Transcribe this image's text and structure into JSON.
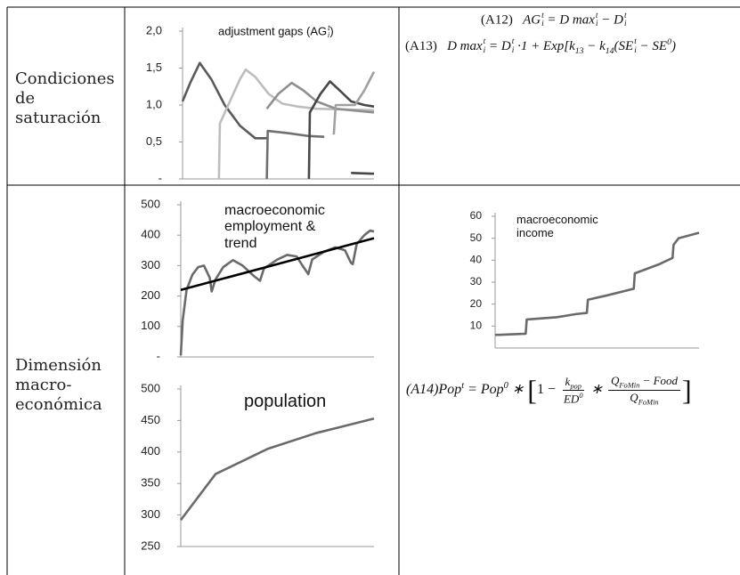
{
  "table": {
    "rows": [
      {
        "label": [
          "Condiciones",
          "de",
          "saturación"
        ]
      },
      {
        "label": [
          "Dimensión",
          "macro-",
          "económica"
        ]
      }
    ]
  },
  "equations": {
    "a12": [
      "(A12)",
      "AG",
      "t",
      "i",
      " = D max",
      "t",
      "i",
      " − D",
      "t",
      "i"
    ],
    "a13": [
      "(A13)",
      "D max",
      "t",
      "i",
      " = D",
      "t",
      "i",
      " ·1 + Exp[k",
      "13",
      " − k",
      "14",
      "(SE",
      "t",
      "i",
      " − SE",
      "0",
      ")"
    ],
    "a14": [
      "(A14)Pop",
      "t",
      " = Pop",
      "0",
      " ∗ ",
      "[",
      "1 − ",
      "k",
      "pop",
      "ED",
      "0",
      " ∗ ",
      "Q",
      "FoMin",
      " − Food",
      "Q",
      "FoMin",
      "]"
    ]
  },
  "chart_data": [
    {
      "type": "line",
      "title": [
        "adjustment gaps (AG",
        "t",
        "i",
        ")"
      ],
      "xlim": [
        0,
        100
      ],
      "ylim": [
        0,
        2
      ],
      "yticks": [
        {
          "value": 2,
          "label": "2,0"
        },
        {
          "value": 1.5,
          "label": "1,5"
        },
        {
          "value": 1,
          "label": "1,0"
        },
        {
          "value": 0.5,
          "label": "0,5"
        },
        {
          "value": 0,
          "label": "-"
        }
      ],
      "series": [
        {
          "color": "#5a5a5a",
          "x": [
            0,
            4,
            9,
            15,
            22,
            30,
            38,
            44
          ],
          "values": [
            1.05,
            1.3,
            1.57,
            1.35,
            1.0,
            0.72,
            0.55,
            0.55
          ]
        },
        {
          "color": "#bdbdbd",
          "x": [
            19,
            19.5,
            23,
            30,
            33,
            38,
            45,
            52,
            60,
            70,
            100
          ],
          "values": [
            0,
            0.75,
            0.95,
            1.35,
            1.48,
            1.38,
            1.15,
            1.02,
            0.98,
            0.95,
            0.93
          ]
        },
        {
          "color": "#707070",
          "x": [
            44,
            44.5,
            55,
            66,
            74
          ],
          "values": [
            0,
            0.65,
            0.62,
            0.58,
            0.57
          ]
        },
        {
          "color": "#8f8f8f",
          "x": [
            44,
            50,
            57,
            63,
            70,
            80,
            100
          ],
          "values": [
            0.95,
            1.15,
            1.3,
            1.2,
            1.05,
            0.95,
            0.9
          ]
        },
        {
          "color": "#474747",
          "x": [
            66,
            66.5,
            72,
            77,
            82,
            88,
            95,
            100
          ],
          "values": [
            0,
            0.9,
            1.15,
            1.32,
            1.2,
            1.05,
            1.0,
            0.98
          ]
        },
        {
          "color": "#a0a0a0",
          "x": [
            79,
            80,
            90,
            95,
            100
          ],
          "values": [
            0.6,
            1.0,
            1.0,
            1.2,
            1.45
          ]
        },
        {
          "color": "#474747",
          "x": [
            88,
            100
          ],
          "values": [
            0.08,
            0.07
          ]
        }
      ]
    },
    {
      "type": "line",
      "title": [
        "macroeconomic",
        "employment &",
        "trend"
      ],
      "xlim": [
        0,
        100
      ],
      "ylim": [
        0,
        500
      ],
      "yticks": [
        500,
        400,
        300,
        200,
        100,
        {
          "value": 0,
          "label": "-"
        }
      ],
      "series": [
        {
          "color": "#6a6a6a",
          "x": [
            0,
            1,
            3,
            6,
            9,
            12,
            15,
            16,
            18,
            22,
            27,
            32,
            38,
            41,
            43,
            50,
            55,
            60,
            63,
            66,
            68,
            74,
            80,
            85,
            88,
            89,
            91,
            95,
            98,
            100
          ],
          "values": [
            5,
            120,
            220,
            270,
            295,
            300,
            260,
            215,
            255,
            295,
            318,
            300,
            265,
            250,
            290,
            320,
            335,
            330,
            300,
            272,
            320,
            345,
            360,
            350,
            310,
            305,
            370,
            400,
            415,
            412
          ]
        },
        {
          "color": "#000000",
          "x": [
            0,
            100
          ],
          "values": [
            220,
            390
          ]
        }
      ]
    },
    {
      "type": "line",
      "title": [
        "macroeconomic",
        "income"
      ],
      "xlim": [
        0,
        100
      ],
      "ylim": [
        0,
        60
      ],
      "yticks": [
        60,
        50,
        40,
        30,
        20,
        10
      ],
      "series": [
        {
          "color": "#6a6a6a",
          "x": [
            0,
            2,
            15,
            15.5,
            30,
            40,
            45,
            45.5,
            55,
            68,
            68.5,
            80,
            87,
            87.5,
            90,
            100
          ],
          "values": [
            6,
            6,
            6.5,
            13,
            14,
            15.5,
            16,
            22,
            24,
            27,
            34,
            38,
            41,
            47,
            50,
            52.5
          ]
        }
      ]
    },
    {
      "type": "line",
      "title": [
        "population"
      ],
      "xlim": [
        0,
        100
      ],
      "ylim": [
        250,
        500
      ],
      "yticks": [
        500,
        450,
        400,
        350,
        300,
        250
      ],
      "series": [
        {
          "color": "#6a6a6a",
          "x": [
            0,
            18,
            45,
            70,
            100
          ],
          "values": [
            292,
            365,
            405,
            430,
            453
          ]
        }
      ]
    }
  ]
}
